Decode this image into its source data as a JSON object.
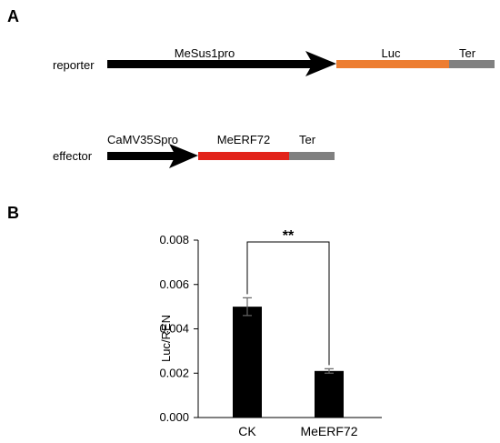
{
  "panel_a": {
    "label": "A",
    "reporter": {
      "row_label": "reporter",
      "parts": [
        {
          "name": "MeSus1pro",
          "kind": "promoter",
          "color": "#000000"
        },
        {
          "name": "Luc",
          "kind": "gene",
          "color": "#ED7D31"
        },
        {
          "name": "Ter",
          "kind": "terminator",
          "color": "#808080"
        }
      ]
    },
    "effector": {
      "row_label": "effector",
      "parts": [
        {
          "name": "CaMV35Spro",
          "kind": "promoter",
          "color": "#000000"
        },
        {
          "name": "MeERF72",
          "kind": "gene",
          "color": "#E2231A"
        },
        {
          "name": "Ter",
          "kind": "terminator",
          "color": "#808080"
        }
      ]
    }
  },
  "panel_b": {
    "label": "B"
  },
  "chart_data": {
    "type": "bar",
    "categories": [
      "CK",
      "MeERF72"
    ],
    "values": [
      0.005,
      0.0021
    ],
    "errors": [
      0.0004,
      0.0001
    ],
    "xlabel": "",
    "ylabel": "Luc/REN",
    "ylim": [
      0,
      0.008
    ],
    "yticks": [
      "0.000",
      "0.002",
      "0.004",
      "0.006",
      "0.008"
    ],
    "bar_color": "#000000",
    "significance": {
      "between": [
        "CK",
        "MeERF72"
      ],
      "label": "**"
    },
    "grid": false
  }
}
